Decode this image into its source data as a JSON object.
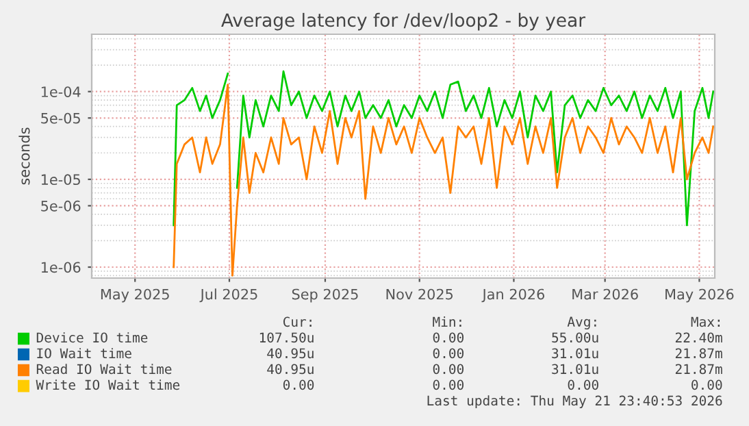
{
  "chart_data": {
    "type": "line",
    "title": "Average latency for /dev/loop2 - by year",
    "ylabel": "seconds",
    "log": "y",
    "grid": true,
    "legend": "bottom",
    "line_style": "solid",
    "marker": "none",
    "xlim": [
      "2025-04-03",
      "2026-05-11"
    ],
    "ylim": [
      7.5e-07,
      0.00045
    ],
    "xticks": [
      {
        "value": "2025-05-01",
        "label": "May 2025"
      },
      {
        "value": "2025-07-01",
        "label": "Jul 2025"
      },
      {
        "value": "2025-09-01",
        "label": "Sep 2025"
      },
      {
        "value": "2025-11-01",
        "label": "Nov 2025"
      },
      {
        "value": "2026-01-01",
        "label": "Jan 2026"
      },
      {
        "value": "2026-03-01",
        "label": "Mar 2026"
      },
      {
        "value": "2026-05-01",
        "label": "May 2026"
      }
    ],
    "yticks": [
      {
        "value": 1e-06,
        "label": "1e-06"
      },
      {
        "value": 5e-06,
        "label": "5e-06"
      },
      {
        "value": 1e-05,
        "label": "1e-05"
      },
      {
        "value": 5e-05,
        "label": "5e-05"
      },
      {
        "value": 0.0001,
        "label": "1e-04"
      }
    ],
    "x": [
      "2025-05-26",
      "2025-05-28",
      "2025-06-02",
      "2025-06-07",
      "2025-06-12",
      "2025-06-16",
      "2025-06-20",
      "2025-06-25",
      "2025-06-30",
      "2025-07-03",
      "2025-07-06",
      "2025-07-10",
      "2025-07-14",
      "2025-07-18",
      "2025-07-23",
      "2025-07-28",
      "2025-08-02",
      "2025-08-05",
      "2025-08-10",
      "2025-08-15",
      "2025-08-20",
      "2025-08-25",
      "2025-08-30",
      "2025-09-04",
      "2025-09-09",
      "2025-09-14",
      "2025-09-18",
      "2025-09-23",
      "2025-09-27",
      "2025-10-02",
      "2025-10-07",
      "2025-10-12",
      "2025-10-17",
      "2025-10-22",
      "2025-10-27",
      "2025-11-01",
      "2025-11-06",
      "2025-11-11",
      "2025-11-16",
      "2025-11-21",
      "2025-11-26",
      "2025-12-01",
      "2025-12-06",
      "2025-12-11",
      "2025-12-16",
      "2025-12-21",
      "2025-12-26",
      "2025-12-31",
      "2026-01-05",
      "2026-01-10",
      "2026-01-15",
      "2026-01-20",
      "2026-01-25",
      "2026-01-29",
      "2026-02-03",
      "2026-02-08",
      "2026-02-13",
      "2026-02-18",
      "2026-02-23",
      "2026-02-28",
      "2026-03-05",
      "2026-03-10",
      "2026-03-15",
      "2026-03-20",
      "2026-03-25",
      "2026-03-30",
      "2026-04-04",
      "2026-04-09",
      "2026-04-14",
      "2026-04-19",
      "2026-04-23",
      "2026-04-28",
      "2026-05-03",
      "2026-05-07",
      "2026-05-10"
    ],
    "series": [
      {
        "name": "Device IO time",
        "color": "#00cc00",
        "values": [
          3e-06,
          7e-05,
          8e-05,
          0.00011,
          6e-05,
          9e-05,
          5e-05,
          8e-05,
          0.00016,
          null,
          8e-06,
          9e-05,
          3e-05,
          8e-05,
          4e-05,
          9e-05,
          6e-05,
          0.00017,
          7e-05,
          0.0001,
          5e-05,
          9e-05,
          6e-05,
          0.0001,
          4e-05,
          9e-05,
          6e-05,
          0.0001,
          5e-05,
          7e-05,
          5e-05,
          8e-05,
          4e-05,
          7e-05,
          5e-05,
          9e-05,
          6e-05,
          0.0001,
          5e-05,
          0.00012,
          0.00013,
          6e-05,
          9e-05,
          5e-05,
          0.00011,
          4e-05,
          8e-05,
          5e-05,
          0.0001,
          3e-05,
          9e-05,
          6e-05,
          0.0001,
          1.2e-05,
          7e-05,
          9e-05,
          5e-05,
          8e-05,
          6e-05,
          0.00011,
          7e-05,
          9e-05,
          6e-05,
          0.0001,
          5e-05,
          9e-05,
          6e-05,
          0.00011,
          5e-05,
          0.0001,
          3e-06,
          6e-05,
          0.00011,
          5e-05,
          0.0001
        ]
      },
      {
        "name": "IO Wait time",
        "color": "#0066b3",
        "values": [
          null,
          null,
          null,
          null,
          null,
          null,
          null,
          null,
          null,
          null,
          null,
          null,
          null,
          null,
          null,
          null,
          null,
          null,
          null,
          null,
          null,
          null,
          null,
          null,
          null,
          null,
          null,
          null,
          null,
          null,
          null,
          null,
          null,
          null,
          null,
          null,
          null,
          null,
          null,
          null,
          null,
          null,
          null,
          null,
          null,
          null,
          null,
          null,
          null,
          null,
          null,
          null,
          null,
          null,
          null,
          null,
          null,
          null,
          null,
          null,
          null,
          null,
          null,
          null,
          null,
          null,
          null,
          null,
          null,
          null,
          null,
          null,
          null,
          null,
          null
        ]
      },
      {
        "name": "Read IO Wait time",
        "color": "#ff8000",
        "values": [
          1e-06,
          1.5e-05,
          2.5e-05,
          3e-05,
          1.2e-05,
          3e-05,
          1.5e-05,
          2.5e-05,
          0.00012,
          8e-07,
          5e-06,
          3e-05,
          7e-06,
          2e-05,
          1.2e-05,
          3e-05,
          1.5e-05,
          5e-05,
          2.5e-05,
          3e-05,
          1e-05,
          4e-05,
          2e-05,
          6e-05,
          1.5e-05,
          5e-05,
          3e-05,
          6e-05,
          6e-06,
          4e-05,
          2e-05,
          5e-05,
          2.5e-05,
          4e-05,
          2e-05,
          5e-05,
          3e-05,
          2e-05,
          3e-05,
          7e-06,
          4e-05,
          3e-05,
          4e-05,
          1.5e-05,
          5e-05,
          8e-06,
          4e-05,
          2.5e-05,
          5e-05,
          1.5e-05,
          4e-05,
          2e-05,
          5e-05,
          8e-06,
          3e-05,
          5e-05,
          2e-05,
          4e-05,
          3e-05,
          2e-05,
          5e-05,
          2.5e-05,
          4e-05,
          3e-05,
          2e-05,
          5e-05,
          2e-05,
          4e-05,
          1.2e-05,
          5e-05,
          1e-05,
          2e-05,
          3e-05,
          2e-05,
          4e-05
        ]
      },
      {
        "name": "Write IO Wait time",
        "color": "#ffcc00",
        "values": [
          null,
          null,
          null,
          null,
          null,
          null,
          null,
          null,
          null,
          null,
          null,
          null,
          null,
          null,
          null,
          null,
          null,
          null,
          null,
          null,
          null,
          null,
          null,
          null,
          null,
          null,
          null,
          null,
          null,
          null,
          null,
          null,
          null,
          null,
          null,
          null,
          null,
          null,
          null,
          null,
          null,
          null,
          null,
          null,
          null,
          null,
          null,
          null,
          null,
          null,
          null,
          null,
          null,
          null,
          null,
          null,
          null,
          null,
          null,
          null,
          null,
          null,
          null,
          null,
          null,
          null,
          null,
          null,
          null,
          null,
          null,
          null,
          null,
          null,
          null
        ]
      }
    ],
    "annotations": [
      "Cur:",
      "Min:",
      "Avg:",
      "Max:",
      "107.50u",
      "0.00",
      "55.00u",
      "22.40m",
      "40.95u",
      "0.00",
      "31.01u",
      "21.87m",
      "40.95u",
      "0.00",
      "31.01u",
      "21.87m",
      "0.00",
      "0.00",
      "0.00",
      "0.00",
      "Last update: Thu May 21 23:40:53 2026"
    ]
  }
}
